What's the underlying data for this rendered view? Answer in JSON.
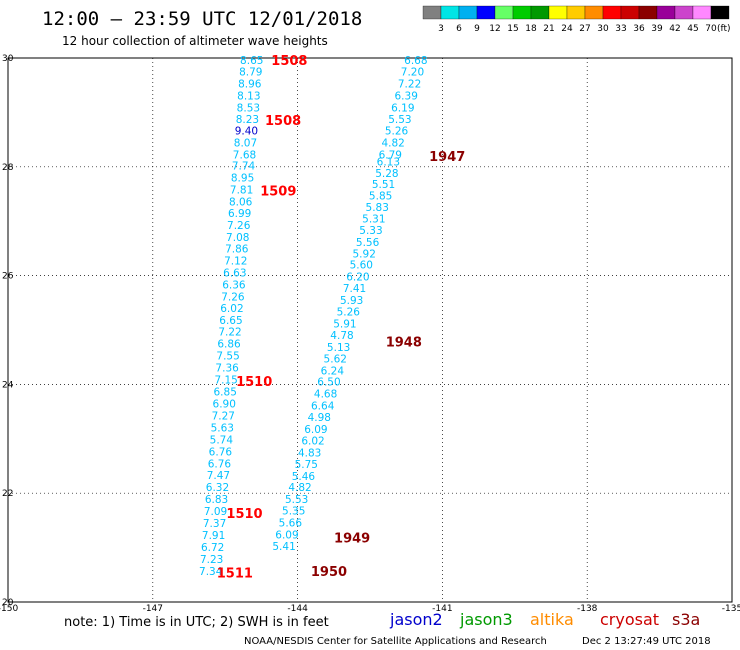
{
  "header": {
    "title": "12:00 – 23:59 UTC 12/01/2018",
    "subtitle": "12 hour collection of altimeter wave heights"
  },
  "legend": {
    "colors": [
      "#808080",
      "#00e5e5",
      "#00b0f0",
      "#0000ff",
      "#66ff66",
      "#00cc00",
      "#009900",
      "#ffff00",
      "#ffcc00",
      "#ff8c00",
      "#ff0000",
      "#cc0000",
      "#8b0000",
      "#990099",
      "#cc44cc",
      "#ff88ff",
      "#000000"
    ],
    "labels": [
      "3",
      "6",
      "9",
      "12",
      "15",
      "18",
      "21",
      "24",
      "27",
      "30",
      "33",
      "36",
      "39",
      "42",
      "45",
      "70"
    ],
    "unit": "(ft)"
  },
  "footer": {
    "note": "note:  1) Time is in UTC;  2) SWH is in feet",
    "satellites": [
      {
        "name": "jason2",
        "color": "#0000cc"
      },
      {
        "name": "jason3",
        "color": "#009900"
      },
      {
        "name": "altika",
        "color": "#ff8c00"
      },
      {
        "name": "cryosat",
        "color": "#cc0000"
      },
      {
        "name": "s3a",
        "color": "#8b0000"
      }
    ],
    "credit": "NOAA/NESDIS Center for Satellite Applications and Research",
    "timestamp": "Dec  2 13:27:49 UTC 2018"
  },
  "chart_data": {
    "type": "scatter",
    "title": "12:00 – 23:59 UTC 12/01/2018",
    "xlim": [
      -150,
      -135
    ],
    "ylim": [
      20,
      30
    ],
    "x_ticks": [
      "-150",
      "-147",
      "-144",
      "-141",
      "-138",
      "-135"
    ],
    "y_ticks": [
      "20",
      "22",
      "24",
      "26",
      "28",
      "30"
    ],
    "grid": true,
    "series": [
      {
        "name": "cryosat",
        "color": "#00c0ff",
        "points": [
          {
            "x": -144.95,
            "y": 29.96,
            "v": "8.65"
          },
          {
            "x": -144.97,
            "y": 29.75,
            "v": "8.79"
          },
          {
            "x": -144.99,
            "y": 29.53,
            "v": "8.96"
          },
          {
            "x": -145.01,
            "y": 29.31,
            "v": "8.13"
          },
          {
            "x": -145.02,
            "y": 29.09,
            "v": "8.53"
          },
          {
            "x": -145.04,
            "y": 28.88,
            "v": "8.23"
          },
          {
            "x": -145.06,
            "y": 28.67,
            "v": "9.40",
            "color": "#0000cc"
          },
          {
            "x": -145.08,
            "y": 28.45,
            "v": "8.07"
          },
          {
            "x": -145.1,
            "y": 28.23,
            "v": "7.68"
          },
          {
            "x": -145.12,
            "y": 28.02,
            "v": "7.74"
          },
          {
            "x": -145.14,
            "y": 27.8,
            "v": "8.95"
          },
          {
            "x": -145.16,
            "y": 27.58,
            "v": "7.81"
          },
          {
            "x": -145.18,
            "y": 27.36,
            "v": "8.06"
          },
          {
            "x": -145.2,
            "y": 27.15,
            "v": "6.99"
          },
          {
            "x": -145.22,
            "y": 26.93,
            "v": "7.26"
          },
          {
            "x": -145.24,
            "y": 26.71,
            "v": "7.08"
          },
          {
            "x": -145.26,
            "y": 26.5,
            "v": "7.86"
          },
          {
            "x": -145.28,
            "y": 26.28,
            "v": "7.12"
          },
          {
            "x": -145.3,
            "y": 26.06,
            "v": "6.63"
          },
          {
            "x": -145.32,
            "y": 25.84,
            "v": "6.36"
          },
          {
            "x": -145.34,
            "y": 25.62,
            "v": "7.26"
          },
          {
            "x": -145.36,
            "y": 25.4,
            "v": "6.02"
          },
          {
            "x": -145.38,
            "y": 25.18,
            "v": "6.65"
          },
          {
            "x": -145.4,
            "y": 24.97,
            "v": "7.22"
          },
          {
            "x": -145.42,
            "y": 24.75,
            "v": "6.86"
          },
          {
            "x": -145.44,
            "y": 24.53,
            "v": "7.55"
          },
          {
            "x": -145.46,
            "y": 24.31,
            "v": "7.36"
          },
          {
            "x": -145.48,
            "y": 24.09,
            "v": "7.15"
          },
          {
            "x": -145.5,
            "y": 23.87,
            "v": "6.85"
          },
          {
            "x": -145.52,
            "y": 23.65,
            "v": "6.90"
          },
          {
            "x": -145.54,
            "y": 23.43,
            "v": "7.27"
          },
          {
            "x": -145.56,
            "y": 23.21,
            "v": "5.63"
          },
          {
            "x": -145.58,
            "y": 22.99,
            "v": "5.74"
          },
          {
            "x": -145.6,
            "y": 22.77,
            "v": "6.76"
          },
          {
            "x": -145.62,
            "y": 22.55,
            "v": "6.76"
          },
          {
            "x": -145.64,
            "y": 22.33,
            "v": "7.47"
          },
          {
            "x": -145.66,
            "y": 22.11,
            "v": "6.32"
          },
          {
            "x": -145.68,
            "y": 21.89,
            "v": "6.83"
          },
          {
            "x": -145.7,
            "y": 21.67,
            "v": "7.09"
          },
          {
            "x": -145.72,
            "y": 21.45,
            "v": "7.37"
          },
          {
            "x": -145.74,
            "y": 21.23,
            "v": "7.91"
          },
          {
            "x": -145.76,
            "y": 21.01,
            "v": "6.72"
          },
          {
            "x": -145.78,
            "y": 20.79,
            "v": "7.23"
          },
          {
            "x": -145.8,
            "y": 20.57,
            "v": "7.34"
          }
        ]
      },
      {
        "name": "s3a",
        "color": "#00c0ff",
        "points": [
          {
            "x": -141.55,
            "y": 29.96,
            "v": "6.68"
          },
          {
            "x": -141.62,
            "y": 29.75,
            "v": "7.20"
          },
          {
            "x": -141.68,
            "y": 29.53,
            "v": "7.22"
          },
          {
            "x": -141.75,
            "y": 29.31,
            "v": "6.39"
          },
          {
            "x": -141.82,
            "y": 29.09,
            "v": "6.19"
          },
          {
            "x": -141.88,
            "y": 28.88,
            "v": "5.53"
          },
          {
            "x": -141.95,
            "y": 28.67,
            "v": "5.26"
          },
          {
            "x": -142.02,
            "y": 28.45,
            "v": "4.82"
          },
          {
            "x": -142.08,
            "y": 28.23,
            "v": "6.79"
          },
          {
            "x": -142.12,
            "y": 28.1,
            "v": "6.13"
          },
          {
            "x": -142.15,
            "y": 27.89,
            "v": "5.28"
          },
          {
            "x": -142.22,
            "y": 27.68,
            "v": "5.51"
          },
          {
            "x": -142.28,
            "y": 27.47,
            "v": "5.85"
          },
          {
            "x": -142.35,
            "y": 27.26,
            "v": "5.83"
          },
          {
            "x": -142.42,
            "y": 27.05,
            "v": "5.31"
          },
          {
            "x": -142.48,
            "y": 26.84,
            "v": "5.33"
          },
          {
            "x": -142.55,
            "y": 26.62,
            "v": "5.56"
          },
          {
            "x": -142.62,
            "y": 26.41,
            "v": "5.92"
          },
          {
            "x": -142.68,
            "y": 26.2,
            "v": "5.60"
          },
          {
            "x": -142.75,
            "y": 25.98,
            "v": "6.20"
          },
          {
            "x": -142.82,
            "y": 25.77,
            "v": "7.41"
          },
          {
            "x": -142.88,
            "y": 25.55,
            "v": "5.93"
          },
          {
            "x": -142.95,
            "y": 25.34,
            "v": "5.26"
          },
          {
            "x": -143.02,
            "y": 25.12,
            "v": "5.91"
          },
          {
            "x": -143.08,
            "y": 24.91,
            "v": "4.78"
          },
          {
            "x": -143.15,
            "y": 24.69,
            "v": "5.13"
          },
          {
            "x": -143.22,
            "y": 24.48,
            "v": "5.62"
          },
          {
            "x": -143.28,
            "y": 24.26,
            "v": "6.24"
          },
          {
            "x": -143.35,
            "y": 24.05,
            "v": "6.50"
          },
          {
            "x": -143.42,
            "y": 23.83,
            "v": "4.68"
          },
          {
            "x": -143.48,
            "y": 23.61,
            "v": "6.64"
          },
          {
            "x": -143.55,
            "y": 23.4,
            "v": "4.98"
          },
          {
            "x": -143.62,
            "y": 23.18,
            "v": "6.09"
          },
          {
            "x": -143.68,
            "y": 22.97,
            "v": "6.02"
          },
          {
            "x": -143.75,
            "y": 22.75,
            "v": "4.83"
          },
          {
            "x": -143.82,
            "y": 22.54,
            "v": "5.75"
          },
          {
            "x": -143.88,
            "y": 22.32,
            "v": "5.46"
          },
          {
            "x": -143.95,
            "y": 22.11,
            "v": "4.82"
          },
          {
            "x": -144.02,
            "y": 21.89,
            "v": "5.53"
          },
          {
            "x": -144.08,
            "y": 21.68,
            "v": "5.35"
          },
          {
            "x": -144.15,
            "y": 21.46,
            "v": "5.66"
          },
          {
            "x": -144.22,
            "y": 21.24,
            "v": "6.09"
          },
          {
            "x": -144.28,
            "y": 21.03,
            "v": "5.41"
          }
        ]
      }
    ],
    "time_labels": [
      {
        "text": "1508",
        "x": -144.17,
        "y": 29.96,
        "color": "#ff0000"
      },
      {
        "text": "1508",
        "x": -144.3,
        "y": 28.86,
        "color": "#ff0000"
      },
      {
        "text": "1509",
        "x": -144.4,
        "y": 27.56,
        "color": "#ff0000"
      },
      {
        "text": "1510",
        "x": -144.9,
        "y": 24.06,
        "color": "#ff0000"
      },
      {
        "text": "1510",
        "x": -145.1,
        "y": 21.64,
        "color": "#ff0000"
      },
      {
        "text": "1511",
        "x": -145.3,
        "y": 20.54,
        "color": "#ff0000"
      },
      {
        "text": "1947",
        "x": -140.9,
        "y": 28.2,
        "color": "#8b0000"
      },
      {
        "text": "1948",
        "x": -141.8,
        "y": 24.79,
        "color": "#8b0000"
      },
      {
        "text": "1949",
        "x": -142.87,
        "y": 21.19,
        "color": "#8b0000"
      },
      {
        "text": "1950",
        "x": -143.35,
        "y": 20.57,
        "color": "#8b0000"
      }
    ]
  }
}
